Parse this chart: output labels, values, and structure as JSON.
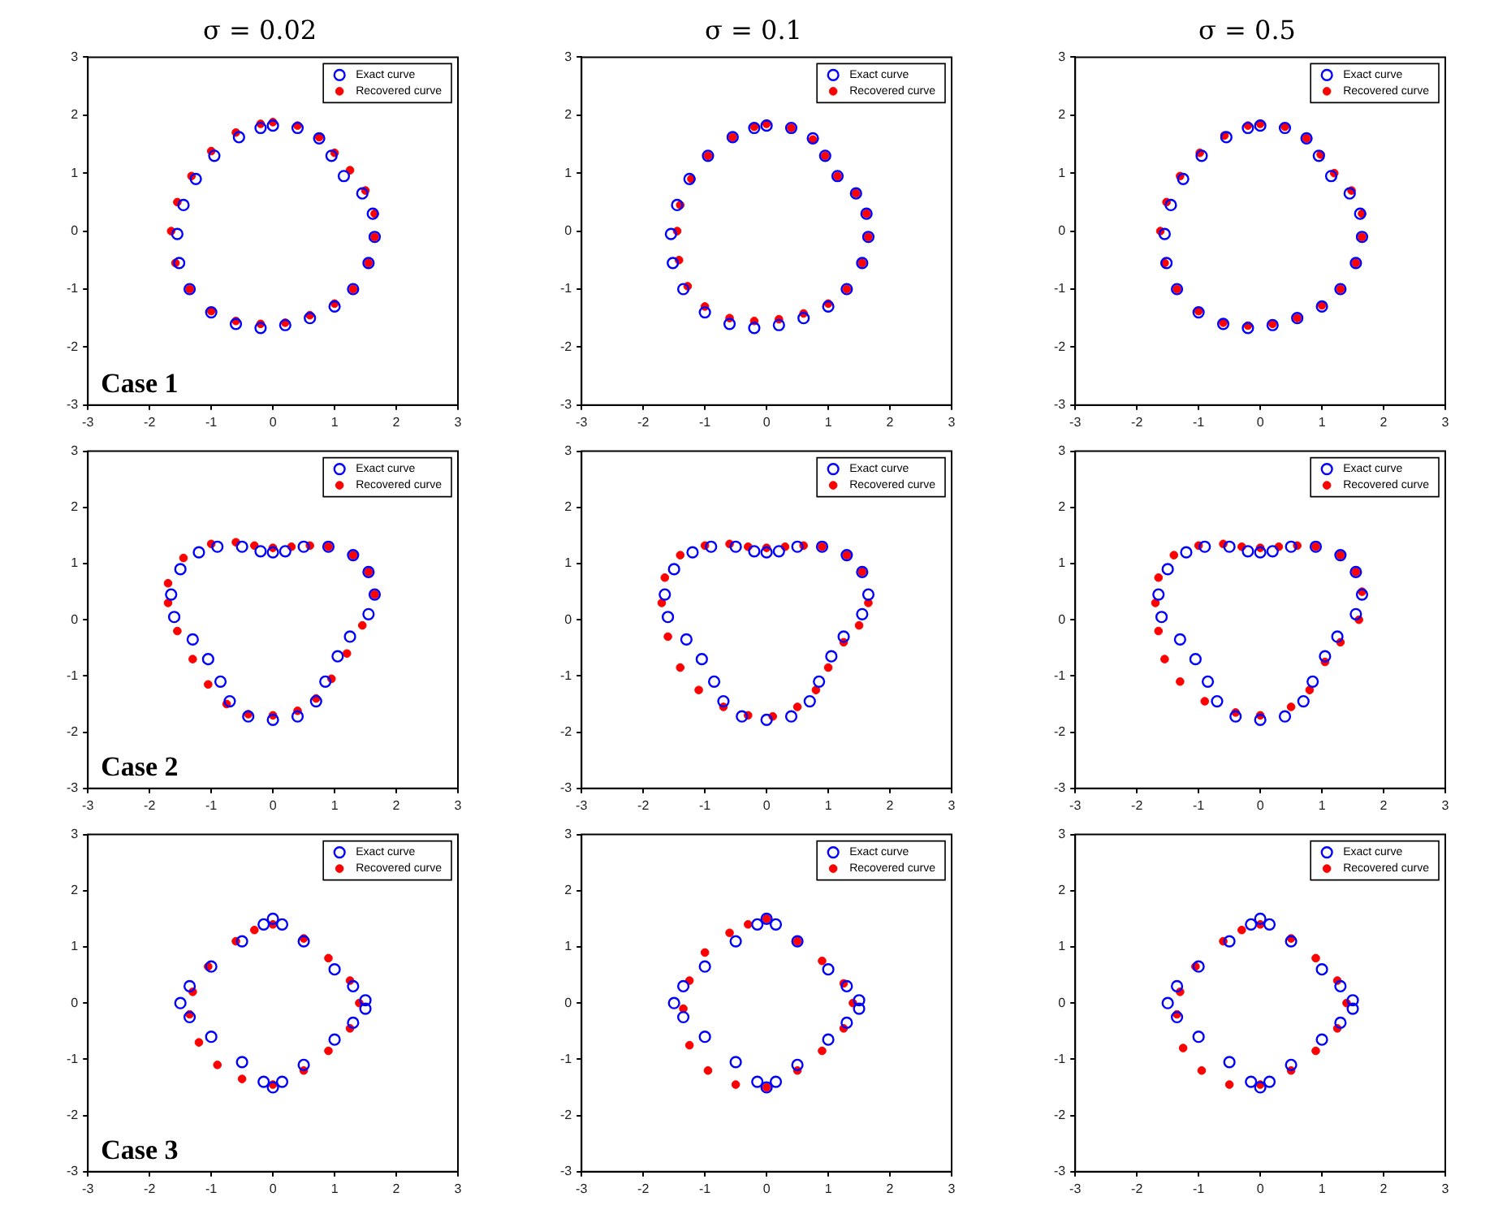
{
  "chart_data": [
    {
      "type": "scatter",
      "title": "σ = 0.02",
      "xlim": [
        -3,
        3
      ],
      "ylim": [
        -3,
        3
      ],
      "xticks": [
        -3,
        -2,
        -1,
        0,
        1,
        2,
        3
      ],
      "yticks": [
        -3,
        -2,
        -1,
        0,
        1,
        2,
        3
      ],
      "grid": false,
      "legend": "top right",
      "annotations": [
        "Case 1"
      ],
      "series": [
        {
          "name": "Exact curve",
          "color": "#0000ff",
          "marker": "circle",
          "x": [
            0,
            0.4,
            0.75,
            0.95,
            1.15,
            1.45,
            1.62,
            1.65,
            1.55,
            1.3,
            1.0,
            0.6,
            0.2,
            -0.2,
            -0.6,
            -1.0,
            -1.35,
            -1.52,
            -1.55,
            -1.45,
            -1.25,
            -0.95,
            -0.55,
            -0.2
          ],
          "values": [
            1.82,
            1.78,
            1.6,
            1.3,
            0.95,
            0.65,
            0.3,
            -0.1,
            -0.55,
            -1.0,
            -1.3,
            -1.5,
            -1.62,
            -1.67,
            -1.6,
            -1.4,
            -1.0,
            -0.55,
            -0.05,
            0.45,
            0.9,
            1.3,
            1.62,
            1.78
          ]
        },
        {
          "name": "Recovered curve",
          "color": "#ff0000",
          "marker": "circle",
          "x": [
            0,
            0.4,
            0.75,
            1.0,
            1.25,
            1.5,
            1.65,
            1.65,
            1.55,
            1.3,
            1.0,
            0.6,
            0.2,
            -0.2,
            -0.6,
            -1.0,
            -1.35,
            -1.58,
            -1.65,
            -1.55,
            -1.32,
            -1.0,
            -0.6,
            -0.2
          ],
          "values": [
            1.88,
            1.82,
            1.62,
            1.35,
            1.05,
            0.7,
            0.3,
            -0.1,
            -0.55,
            -1.0,
            -1.25,
            -1.45,
            -1.58,
            -1.6,
            -1.55,
            -1.38,
            -1.0,
            -0.55,
            0.0,
            0.5,
            0.95,
            1.38,
            1.7,
            1.85
          ]
        }
      ]
    },
    {
      "type": "scatter",
      "title": "σ = 0.1",
      "xlim": [
        -3,
        3
      ],
      "ylim": [
        -3,
        3
      ],
      "xticks": [
        -3,
        -2,
        -1,
        0,
        1,
        2,
        3
      ],
      "yticks": [
        -3,
        -2,
        -1,
        0,
        1,
        2,
        3
      ],
      "grid": false,
      "legend": "top right",
      "series": [
        {
          "name": "Exact curve",
          "color": "#0000ff",
          "marker": "circle",
          "x": [
            0,
            0.4,
            0.75,
            0.95,
            1.15,
            1.45,
            1.62,
            1.65,
            1.55,
            1.3,
            1.0,
            0.6,
            0.2,
            -0.2,
            -0.6,
            -1.0,
            -1.35,
            -1.52,
            -1.55,
            -1.45,
            -1.25,
            -0.95,
            -0.55,
            -0.2
          ],
          "values": [
            1.82,
            1.78,
            1.6,
            1.3,
            0.95,
            0.65,
            0.3,
            -0.1,
            -0.55,
            -1.0,
            -1.3,
            -1.5,
            -1.62,
            -1.67,
            -1.6,
            -1.4,
            -1.0,
            -0.55,
            -0.05,
            0.45,
            0.9,
            1.3,
            1.62,
            1.78
          ]
        },
        {
          "name": "Recovered curve",
          "color": "#ff0000",
          "marker": "circle",
          "x": [
            0,
            0.4,
            0.75,
            0.95,
            1.15,
            1.45,
            1.62,
            1.65,
            1.55,
            1.3,
            1.0,
            0.6,
            0.2,
            -0.2,
            -0.6,
            -1.0,
            -1.28,
            -1.42,
            -1.45,
            -1.4,
            -1.22,
            -0.95,
            -0.55,
            -0.2
          ],
          "values": [
            1.85,
            1.78,
            1.58,
            1.3,
            0.95,
            0.65,
            0.3,
            -0.1,
            -0.55,
            -1.0,
            -1.25,
            -1.42,
            -1.52,
            -1.55,
            -1.5,
            -1.3,
            -0.95,
            -0.5,
            0.0,
            0.45,
            0.9,
            1.3,
            1.62,
            1.8
          ]
        }
      ]
    },
    {
      "type": "scatter",
      "title": "σ = 0.5",
      "xlim": [
        -3,
        3
      ],
      "ylim": [
        -3,
        3
      ],
      "xticks": [
        -3,
        -2,
        -1,
        0,
        1,
        2,
        3
      ],
      "yticks": [
        -3,
        -2,
        -1,
        0,
        1,
        2,
        3
      ],
      "grid": false,
      "legend": "top right",
      "series": [
        {
          "name": "Exact curve",
          "color": "#0000ff",
          "marker": "circle",
          "x": [
            0,
            0.4,
            0.75,
            0.95,
            1.15,
            1.45,
            1.62,
            1.65,
            1.55,
            1.3,
            1.0,
            0.6,
            0.2,
            -0.2,
            -0.6,
            -1.0,
            -1.35,
            -1.52,
            -1.55,
            -1.45,
            -1.25,
            -0.95,
            -0.55,
            -0.2
          ],
          "values": [
            1.82,
            1.78,
            1.6,
            1.3,
            0.95,
            0.65,
            0.3,
            -0.1,
            -0.55,
            -1.0,
            -1.3,
            -1.5,
            -1.62,
            -1.67,
            -1.6,
            -1.4,
            -1.0,
            -0.55,
            -0.05,
            0.45,
            0.9,
            1.3,
            1.62,
            1.78
          ]
        },
        {
          "name": "Recovered curve",
          "color": "#ff0000",
          "marker": "circle",
          "x": [
            0,
            0.4,
            0.75,
            0.98,
            1.2,
            1.48,
            1.65,
            1.65,
            1.55,
            1.3,
            1.0,
            0.6,
            0.2,
            -0.2,
            -0.6,
            -1.0,
            -1.35,
            -1.55,
            -1.62,
            -1.52,
            -1.3,
            -0.98,
            -0.58,
            -0.2
          ],
          "values": [
            1.85,
            1.8,
            1.6,
            1.32,
            1.0,
            0.7,
            0.3,
            -0.1,
            -0.55,
            -1.0,
            -1.28,
            -1.5,
            -1.6,
            -1.63,
            -1.58,
            -1.38,
            -1.0,
            -0.55,
            0.0,
            0.5,
            0.95,
            1.35,
            1.65,
            1.82
          ]
        }
      ]
    },
    {
      "type": "scatter",
      "xlim": [
        -3,
        3
      ],
      "ylim": [
        -3,
        3
      ],
      "xticks": [
        -3,
        -2,
        -1,
        0,
        1,
        2,
        3
      ],
      "yticks": [
        -3,
        -2,
        -1,
        0,
        1,
        2,
        3
      ],
      "grid": false,
      "legend": "top right",
      "annotations": [
        "Case 2"
      ],
      "series": [
        {
          "name": "Exact curve",
          "color": "#0000ff",
          "marker": "circle",
          "x": [
            0,
            0.2,
            0.5,
            0.9,
            1.3,
            1.55,
            1.65,
            1.55,
            1.25,
            1.05,
            0.85,
            0.7,
            0.4,
            0,
            -0.4,
            -0.7,
            -0.85,
            -1.05,
            -1.3,
            -1.6,
            -1.65,
            -1.5,
            -1.2,
            -0.9,
            -0.5,
            -0.2
          ],
          "values": [
            1.2,
            1.22,
            1.3,
            1.3,
            1.15,
            0.85,
            0.45,
            0.1,
            -0.3,
            -0.65,
            -1.1,
            -1.45,
            -1.72,
            -1.78,
            -1.72,
            -1.45,
            -1.1,
            -0.7,
            -0.35,
            0.05,
            0.45,
            0.9,
            1.2,
            1.3,
            1.3,
            1.22
          ]
        },
        {
          "name": "Recovered curve",
          "color": "#ff0000",
          "marker": "circle",
          "x": [
            0,
            0.3,
            0.6,
            0.9,
            1.3,
            1.55,
            1.65,
            1.45,
            1.2,
            0.95,
            0.7,
            0.4,
            0,
            -0.4,
            -0.75,
            -1.05,
            -1.3,
            -1.55,
            -1.7,
            -1.7,
            -1.45,
            -1.0,
            -0.6,
            -0.3
          ],
          "values": [
            1.28,
            1.3,
            1.32,
            1.3,
            1.15,
            0.85,
            0.45,
            -0.1,
            -0.6,
            -1.05,
            -1.4,
            -1.62,
            -1.7,
            -1.68,
            -1.5,
            -1.15,
            -0.7,
            -0.2,
            0.3,
            0.65,
            1.1,
            1.35,
            1.38,
            1.32
          ]
        }
      ]
    },
    {
      "type": "scatter",
      "xlim": [
        -3,
        3
      ],
      "ylim": [
        -3,
        3
      ],
      "xticks": [
        -3,
        -2,
        -1,
        0,
        1,
        2,
        3
      ],
      "yticks": [
        -3,
        -2,
        -1,
        0,
        1,
        2,
        3
      ],
      "grid": false,
      "legend": "top right",
      "series": [
        {
          "name": "Exact curve",
          "color": "#0000ff",
          "marker": "circle",
          "x": [
            0,
            0.2,
            0.5,
            0.9,
            1.3,
            1.55,
            1.65,
            1.55,
            1.25,
            1.05,
            0.85,
            0.7,
            0.4,
            0,
            -0.4,
            -0.7,
            -0.85,
            -1.05,
            -1.3,
            -1.6,
            -1.65,
            -1.5,
            -1.2,
            -0.9,
            -0.5,
            -0.2
          ],
          "values": [
            1.2,
            1.22,
            1.3,
            1.3,
            1.15,
            0.85,
            0.45,
            0.1,
            -0.3,
            -0.65,
            -1.1,
            -1.45,
            -1.72,
            -1.78,
            -1.72,
            -1.45,
            -1.1,
            -0.7,
            -0.35,
            0.05,
            0.45,
            0.9,
            1.2,
            1.3,
            1.3,
            1.22
          ]
        },
        {
          "name": "Recovered curve",
          "color": "#ff0000",
          "marker": "circle",
          "x": [
            0,
            0.3,
            0.6,
            0.9,
            1.3,
            1.55,
            1.65,
            1.5,
            1.25,
            1.0,
            0.8,
            0.5,
            0.1,
            -0.3,
            -0.7,
            -1.1,
            -1.4,
            -1.6,
            -1.7,
            -1.65,
            -1.4,
            -1.0,
            -0.6,
            -0.3
          ],
          "values": [
            1.28,
            1.3,
            1.32,
            1.3,
            1.15,
            0.85,
            0.3,
            -0.1,
            -0.4,
            -0.85,
            -1.25,
            -1.55,
            -1.72,
            -1.7,
            -1.55,
            -1.25,
            -0.85,
            -0.3,
            0.3,
            0.75,
            1.15,
            1.32,
            1.35,
            1.3
          ]
        }
      ]
    },
    {
      "type": "scatter",
      "xlim": [
        -3,
        3
      ],
      "ylim": [
        -3,
        3
      ],
      "xticks": [
        -3,
        -2,
        -1,
        0,
        1,
        2,
        3
      ],
      "yticks": [
        -3,
        -2,
        -1,
        0,
        1,
        2,
        3
      ],
      "grid": false,
      "legend": "top right",
      "series": [
        {
          "name": "Exact curve",
          "color": "#0000ff",
          "marker": "circle",
          "x": [
            0,
            0.2,
            0.5,
            0.9,
            1.3,
            1.55,
            1.65,
            1.55,
            1.25,
            1.05,
            0.85,
            0.7,
            0.4,
            0,
            -0.4,
            -0.7,
            -0.85,
            -1.05,
            -1.3,
            -1.6,
            -1.65,
            -1.5,
            -1.2,
            -0.9,
            -0.5,
            -0.2
          ],
          "values": [
            1.2,
            1.22,
            1.3,
            1.3,
            1.15,
            0.85,
            0.45,
            0.1,
            -0.3,
            -0.65,
            -1.1,
            -1.45,
            -1.72,
            -1.78,
            -1.72,
            -1.45,
            -1.1,
            -0.7,
            -0.35,
            0.05,
            0.45,
            0.9,
            1.2,
            1.3,
            1.3,
            1.22
          ]
        },
        {
          "name": "Recovered curve",
          "color": "#ff0000",
          "marker": "circle",
          "x": [
            0,
            0.3,
            0.6,
            0.9,
            1.3,
            1.55,
            1.65,
            1.6,
            1.3,
            1.05,
            0.8,
            0.5,
            0,
            -0.4,
            -0.9,
            -1.3,
            -1.55,
            -1.65,
            -1.7,
            -1.65,
            -1.4,
            -1.0,
            -0.6,
            -0.3
          ],
          "values": [
            1.28,
            1.3,
            1.32,
            1.3,
            1.15,
            0.85,
            0.5,
            0.0,
            -0.4,
            -0.75,
            -1.25,
            -1.55,
            -1.7,
            -1.65,
            -1.45,
            -1.1,
            -0.7,
            -0.2,
            0.3,
            0.75,
            1.15,
            1.32,
            1.35,
            1.3
          ]
        }
      ]
    },
    {
      "type": "scatter",
      "xlim": [
        -3,
        3
      ],
      "ylim": [
        -3,
        3
      ],
      "xticks": [
        -3,
        -2,
        -1,
        0,
        1,
        2,
        3
      ],
      "yticks": [
        -3,
        -2,
        -1,
        0,
        1,
        2,
        3
      ],
      "grid": false,
      "legend": "top right",
      "annotations": [
        "Case 3"
      ],
      "series": [
        {
          "name": "Exact curve",
          "color": "#0000ff",
          "marker": "circle",
          "x": [
            0,
            0.15,
            0.5,
            1.0,
            1.3,
            1.5,
            1.5,
            1.3,
            1.0,
            0.5,
            0.15,
            0,
            -0.15,
            -0.5,
            -1.0,
            -1.35,
            -1.5,
            -1.35,
            -1.0,
            -0.5,
            -0.15
          ],
          "values": [
            1.5,
            1.4,
            1.1,
            0.6,
            0.3,
            0.05,
            -0.1,
            -0.35,
            -0.65,
            -1.1,
            -1.4,
            -1.5,
            -1.4,
            -1.05,
            -0.6,
            -0.25,
            0,
            0.3,
            0.65,
            1.1,
            1.4
          ]
        },
        {
          "name": "Recovered curve",
          "color": "#ff0000",
          "marker": "circle",
          "x": [
            0,
            0.5,
            0.9,
            1.25,
            1.4,
            1.25,
            0.9,
            0.5,
            0,
            -0.5,
            -0.9,
            -1.2,
            -1.35,
            -1.3,
            -1.05,
            -0.6,
            -0.3
          ],
          "values": [
            1.4,
            1.15,
            0.8,
            0.4,
            0,
            -0.45,
            -0.85,
            -1.2,
            -1.45,
            -1.35,
            -1.1,
            -0.7,
            -0.2,
            0.2,
            0.65,
            1.1,
            1.3
          ]
        }
      ]
    },
    {
      "type": "scatter",
      "xlim": [
        -3,
        3
      ],
      "ylim": [
        -3,
        3
      ],
      "xticks": [
        -3,
        -2,
        -1,
        0,
        1,
        2,
        3
      ],
      "yticks": [
        -3,
        -2,
        -1,
        0,
        1,
        2,
        3
      ],
      "grid": false,
      "legend": "top right",
      "series": [
        {
          "name": "Exact curve",
          "color": "#0000ff",
          "marker": "circle",
          "x": [
            0,
            0.15,
            0.5,
            1.0,
            1.3,
            1.5,
            1.5,
            1.3,
            1.0,
            0.5,
            0.15,
            0,
            -0.15,
            -0.5,
            -1.0,
            -1.35,
            -1.5,
            -1.35,
            -1.0,
            -0.5,
            -0.15
          ],
          "values": [
            1.5,
            1.4,
            1.1,
            0.6,
            0.3,
            0.05,
            -0.1,
            -0.35,
            -0.65,
            -1.1,
            -1.4,
            -1.5,
            -1.4,
            -1.05,
            -0.6,
            -0.25,
            0,
            0.3,
            0.65,
            1.1,
            1.4
          ]
        },
        {
          "name": "Recovered curve",
          "color": "#ff0000",
          "marker": "circle",
          "x": [
            0,
            0.5,
            0.9,
            1.25,
            1.4,
            1.25,
            0.9,
            0.5,
            0,
            -0.5,
            -0.95,
            -1.25,
            -1.35,
            -1.25,
            -1.0,
            -0.6,
            -0.3
          ],
          "values": [
            1.5,
            1.1,
            0.75,
            0.35,
            0,
            -0.45,
            -0.85,
            -1.2,
            -1.5,
            -1.45,
            -1.2,
            -0.75,
            -0.1,
            0.4,
            0.9,
            1.25,
            1.4
          ]
        }
      ]
    },
    {
      "type": "scatter",
      "xlim": [
        -3,
        3
      ],
      "ylim": [
        -3,
        3
      ],
      "xticks": [
        -3,
        -2,
        -1,
        0,
        1,
        2,
        3
      ],
      "yticks": [
        -3,
        -2,
        -1,
        0,
        1,
        2,
        3
      ],
      "grid": false,
      "legend": "top right",
      "series": [
        {
          "name": "Exact curve",
          "color": "#0000ff",
          "marker": "circle",
          "x": [
            0,
            0.15,
            0.5,
            1.0,
            1.3,
            1.5,
            1.5,
            1.3,
            1.0,
            0.5,
            0.15,
            0,
            -0.15,
            -0.5,
            -1.0,
            -1.35,
            -1.5,
            -1.35,
            -1.0,
            -0.5,
            -0.15
          ],
          "values": [
            1.5,
            1.4,
            1.1,
            0.6,
            0.3,
            0.05,
            -0.1,
            -0.35,
            -0.65,
            -1.1,
            -1.4,
            -1.5,
            -1.4,
            -1.05,
            -0.6,
            -0.25,
            0,
            0.3,
            0.65,
            1.1,
            1.4
          ]
        },
        {
          "name": "Recovered curve",
          "color": "#ff0000",
          "marker": "circle",
          "x": [
            0,
            0.5,
            0.9,
            1.25,
            1.4,
            1.25,
            0.9,
            0.5,
            0,
            -0.5,
            -0.95,
            -1.25,
            -1.35,
            -1.3,
            -1.05,
            -0.6,
            -0.3
          ],
          "values": [
            1.4,
            1.15,
            0.8,
            0.4,
            0,
            -0.45,
            -0.85,
            -1.2,
            -1.45,
            -1.45,
            -1.2,
            -0.8,
            -0.2,
            0.2,
            0.65,
            1.1,
            1.3
          ]
        }
      ]
    }
  ]
}
